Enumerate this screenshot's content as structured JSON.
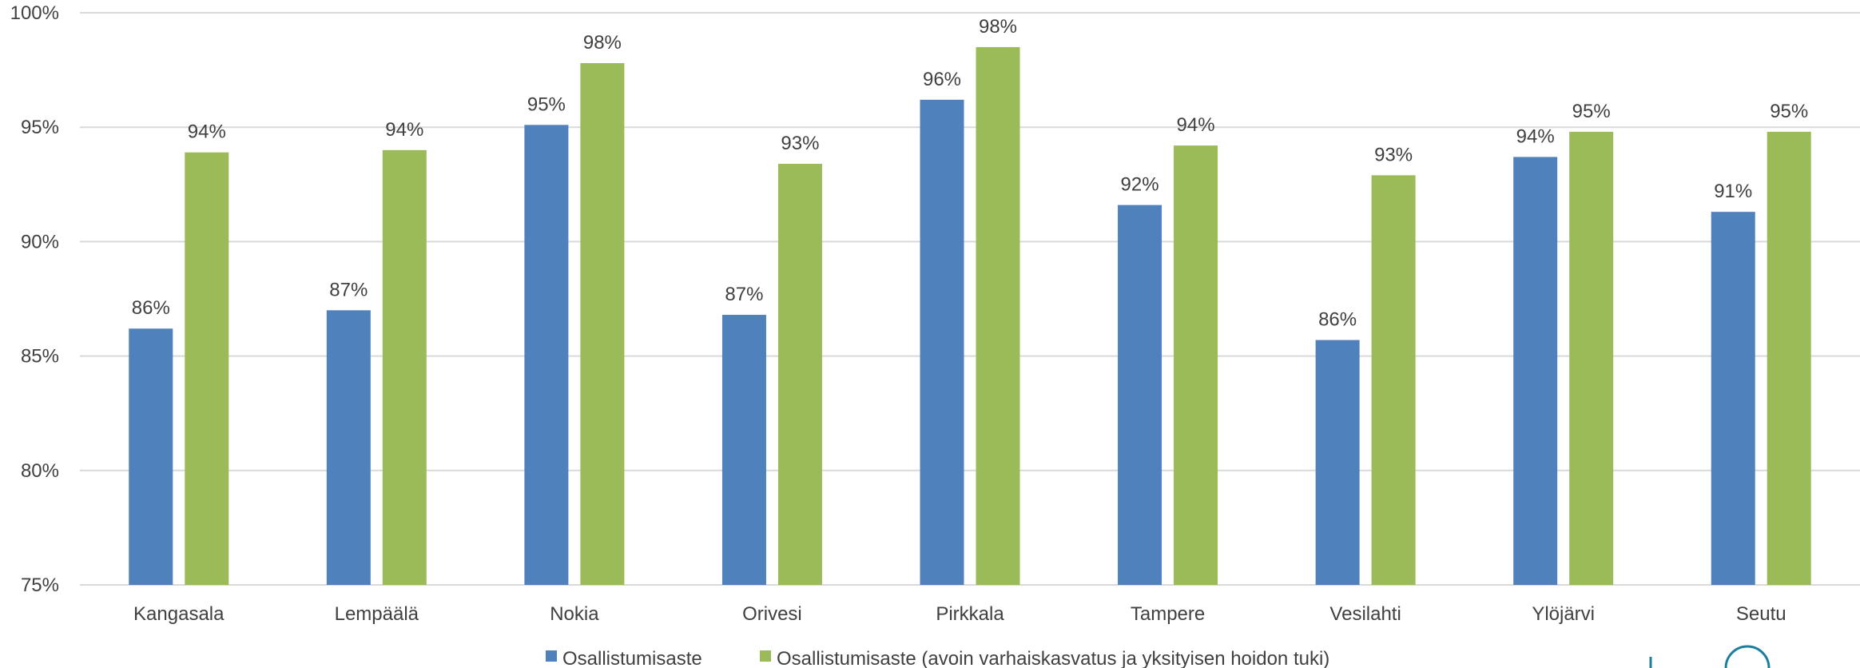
{
  "chart_data": {
    "type": "bar",
    "title": "",
    "xlabel": "",
    "ylabel": "",
    "ylim": [
      75,
      100
    ],
    "yticks": [
      "75%",
      "80%",
      "85%",
      "90%",
      "95%",
      "100%"
    ],
    "ytick_values": [
      75,
      80,
      85,
      90,
      95,
      100
    ],
    "grid": true,
    "legend_position": "bottom",
    "categories": [
      "Kangasala",
      "Lempäälä",
      "Nokia",
      "Orivesi",
      "Pirkkala",
      "Tampere",
      "Vesilahti",
      "Ylöjärvi",
      "Seutu"
    ],
    "series": [
      {
        "name": "Osallistumisaste",
        "color": "#4f81bd",
        "values": [
          86.2,
          87.0,
          95.1,
          86.8,
          96.2,
          91.6,
          85.7,
          93.7,
          91.3
        ],
        "labels": [
          "86%",
          "87%",
          "95%",
          "87%",
          "96%",
          "92%",
          "86%",
          "94%",
          "91%"
        ]
      },
      {
        "name": "Osallistumisaste (avoin varhaiskasvatus ja yksityisen hoidon tuki)",
        "color": "#9bbb59",
        "values": [
          93.9,
          94.0,
          97.8,
          93.4,
          98.5,
          94.2,
          92.9,
          94.8,
          94.8
        ],
        "labels": [
          "94%",
          "94%",
          "98%",
          "93%",
          "98%",
          "94%",
          "93%",
          "95%",
          "95%"
        ]
      }
    ]
  },
  "colors": {
    "grid": "#d9d9d9",
    "axis": "#d9d9d9",
    "text": "#404040",
    "logo": "#1b7f9c"
  },
  "logo_icon": "partial-logo-icon"
}
